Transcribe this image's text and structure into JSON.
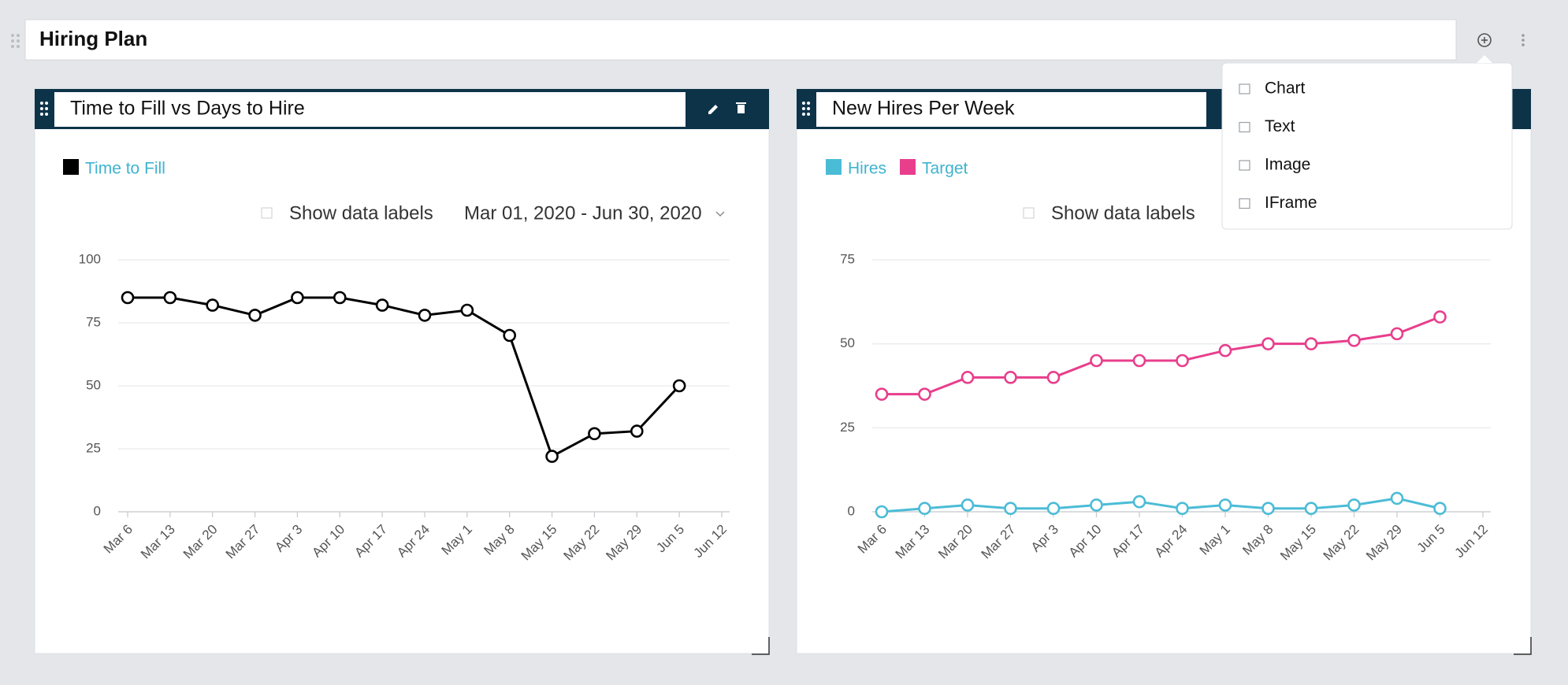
{
  "header": {
    "title": "Hiring Plan"
  },
  "menu": {
    "items": [
      "Chart",
      "Text",
      "Image",
      "IFrame"
    ]
  },
  "chart_data": [
    {
      "type": "line",
      "title": "Time to Fill vs Days to Hire",
      "checkbox_label": "Show data labels",
      "date_range": "Mar 01, 2020 - Jun 30, 2020",
      "categories": [
        "Mar 6",
        "Mar 13",
        "Mar 20",
        "Mar 27",
        "Apr 3",
        "Apr 10",
        "Apr 17",
        "Apr 24",
        "May 1",
        "May 8",
        "May 15",
        "May 22",
        "May 29",
        "Jun 5",
        "Jun 12"
      ],
      "series": [
        {
          "name": "Time to Fill",
          "color": "#000000",
          "values": [
            85,
            85,
            82,
            78,
            85,
            85,
            82,
            78,
            80,
            70,
            22,
            31,
            32,
            50,
            null
          ]
        }
      ],
      "ylim": [
        0,
        100
      ],
      "yticks": [
        0,
        25,
        50,
        75,
        100
      ],
      "grid": true
    },
    {
      "type": "line",
      "title": "New Hires Per Week",
      "checkbox_label": "Show data labels",
      "categories": [
        "Mar 6",
        "Mar 13",
        "Mar 20",
        "Mar 27",
        "Apr 3",
        "Apr 10",
        "Apr 17",
        "Apr 24",
        "May 1",
        "May 8",
        "May 15",
        "May 22",
        "May 29",
        "Jun 5",
        "Jun 12"
      ],
      "series": [
        {
          "name": "Hires",
          "color": "#4bbcd6",
          "values": [
            0,
            1,
            2,
            1,
            1,
            2,
            3,
            1,
            2,
            1,
            1,
            2,
            4,
            1,
            null
          ]
        },
        {
          "name": "Target",
          "color": "#e83e8c",
          "values": [
            35,
            35,
            40,
            40,
            40,
            45,
            45,
            45,
            48,
            50,
            50,
            51,
            53,
            58,
            null
          ]
        }
      ],
      "ylim": [
        0,
        75
      ],
      "yticks": [
        0,
        25,
        50,
        75
      ],
      "grid": true
    }
  ]
}
